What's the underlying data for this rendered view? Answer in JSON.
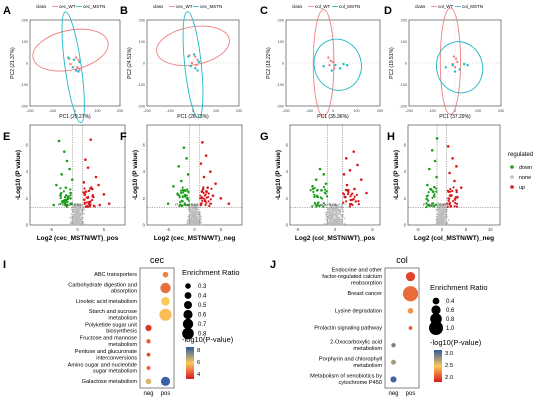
{
  "panels": {
    "A": {
      "letter": "A",
      "legend_title": "class",
      "legend": [
        "cec_WT",
        "cec_MSTN"
      ],
      "xlabel": "PC1 (29.27%)",
      "ylabel": "PC2 (21.37%)",
      "xticks": [
        "-200",
        "-100",
        "0",
        "100",
        "200"
      ],
      "yticks": [
        "200",
        "100",
        "0",
        "-100",
        "-200"
      ]
    },
    "B": {
      "letter": "B",
      "legend_title": "class",
      "legend": [
        "cec_WT",
        "cec_MSTN"
      ],
      "xlabel": "PC1 (28.73%)",
      "ylabel": "PC2 (24.51%)",
      "xticks": [
        "-200",
        "-100",
        "0",
        "100",
        "200"
      ],
      "yticks": [
        "200",
        "100",
        "0",
        "-100",
        "-200"
      ]
    },
    "C": {
      "letter": "C",
      "legend_title": "class",
      "legend": [
        "col_WT",
        "col_MSTN"
      ],
      "xlabel": "PC1 (35.36%)",
      "ylabel": "PC2 (18.22%)",
      "xticks": [
        "-200",
        "-100",
        "0",
        "100",
        "200"
      ],
      "yticks": [
        "200",
        "100",
        "0",
        "-100",
        "-200"
      ]
    },
    "D": {
      "letter": "D",
      "legend_title": "class",
      "legend": [
        "col_WT",
        "col_MSTN"
      ],
      "xlabel": "PC1 (37.29%)",
      "ylabel": "PC2 (19.51%)",
      "xticks": [
        "-200",
        "-100",
        "0",
        "100",
        "200"
      ],
      "yticks": [
        "200",
        "100",
        "0",
        "-100",
        "-200"
      ]
    },
    "E": {
      "letter": "E",
      "xlabel": "Log2 (cec_MSTN/WT)_pos",
      "ylabel": "-Log10 (P value)",
      "pval": "P value: 0.05",
      "xticks": [
        "-5",
        "0",
        "5"
      ],
      "yticks": [
        "0",
        "2",
        "4",
        "6"
      ]
    },
    "F": {
      "letter": "F",
      "xlabel": "Log2 (cec_MSTN/WT)_neg",
      "ylabel": "-Log10 (P value)",
      "pval": "P value: 0.05",
      "xticks": [
        "-5",
        "0",
        "5"
      ],
      "yticks": [
        "0",
        "2",
        "4",
        "6"
      ]
    },
    "G": {
      "letter": "G",
      "xlabel": "Log2 (col_MSTN/WT)_pos",
      "ylabel": "-Log10 (P value)",
      "pval": "P value: 0.05",
      "xticks": [
        "-5",
        "0",
        "5"
      ],
      "yticks": [
        "0",
        "2",
        "4",
        "6"
      ]
    },
    "H": {
      "letter": "H",
      "xlabel": "Log2 (col_MSTN/WT)_neg",
      "ylabel": "-Log10 (P value)",
      "pval": "P value: 0.05",
      "xticks": [
        "-5",
        "0",
        "5",
        "10"
      ],
      "yticks": [
        "0",
        "2",
        "4",
        "6"
      ]
    }
  },
  "regulated_legend": {
    "title": "regulated",
    "items": [
      "down",
      "none",
      "up"
    ],
    "colors": [
      "#1a9e1a",
      "#bdbdbd",
      "#d7191c"
    ]
  },
  "enrich_I": {
    "letter": "I",
    "title": "cec",
    "legend_size_title": "Enrichment Ratio",
    "size_labels": [
      "0.3",
      "0.4",
      "0.5",
      "0.6",
      "0.7",
      "0.8"
    ],
    "legend_color_title": "-log10(P-value)",
    "color_ticks": [
      "8",
      "6",
      "4"
    ]
  },
  "enrich_J": {
    "letter": "J",
    "title": "col",
    "legend_size_title": "Enrichment Ratio",
    "size_labels": [
      "0.4",
      "0.6",
      "0.8",
      "1.0"
    ],
    "legend_color_title": "-log10(P-value)",
    "color_ticks": [
      "3.0",
      "2.5",
      "2.0"
    ]
  },
  "chart_data": [
    {
      "type": "scatter",
      "panel": "A",
      "xlabel": "PC1 (29.27%)",
      "ylabel": "PC2 (21.37%)",
      "xlim": [
        -200,
        200
      ],
      "ylim": [
        -200,
        200
      ],
      "series": [
        {
          "name": "cec_WT",
          "color": "#f08080",
          "points": [
            [
              -25,
              20
            ],
            [
              5,
              25
            ],
            [
              15,
              15
            ],
            [
              -20,
              -5
            ],
            [
              10,
              -20
            ],
            [
              20,
              -30
            ]
          ]
        },
        {
          "name": "cec_MSTN",
          "color": "#20b8c8",
          "points": [
            [
              -30,
              25
            ],
            [
              -5,
              15
            ],
            [
              20,
              5
            ],
            [
              -10,
              -20
            ],
            [
              5,
              -35
            ],
            [
              15,
              -40
            ]
          ]
        }
      ]
    },
    {
      "type": "scatter",
      "panel": "B",
      "xlabel": "PC1 (28.73%)",
      "ylabel": "PC2 (24.51%)",
      "xlim": [
        -200,
        200
      ],
      "ylim": [
        -200,
        200
      ],
      "series": [
        {
          "name": "cec_WT",
          "color": "#f08080",
          "points": [
            [
              -15,
              35
            ],
            [
              10,
              30
            ],
            [
              20,
              15
            ],
            [
              -5,
              0
            ],
            [
              15,
              -10
            ]
          ]
        },
        {
          "name": "cec_MSTN",
          "color": "#20b8c8",
          "points": [
            [
              -20,
              30
            ],
            [
              5,
              40
            ],
            [
              25,
              5
            ],
            [
              -10,
              -15
            ],
            [
              10,
              -25
            ],
            [
              20,
              -35
            ]
          ]
        }
      ]
    },
    {
      "type": "scatter",
      "panel": "C",
      "xlabel": "PC1 (35.36%)",
      "ylabel": "PC2 (18.22%)",
      "xlim": [
        -200,
        200
      ],
      "ylim": [
        -200,
        200
      ],
      "series": [
        {
          "name": "col_WT",
          "color": "#f08080",
          "points": [
            [
              -20,
              25
            ],
            [
              -10,
              10
            ],
            [
              0,
              5
            ],
            [
              -15,
              -10
            ],
            [
              5,
              -25
            ]
          ]
        },
        {
          "name": "col_MSTN",
          "color": "#20b8c8",
          "points": [
            [
              -40,
              -15
            ],
            [
              10,
              -10
            ],
            [
              45,
              -5
            ],
            [
              60,
              -10
            ],
            [
              -5,
              -35
            ],
            [
              30,
              -25
            ]
          ]
        }
      ]
    },
    {
      "type": "scatter",
      "panel": "D",
      "xlabel": "PC1 (37.29%)",
      "ylabel": "PC2 (19.51%)",
      "xlim": [
        -200,
        200
      ],
      "ylim": [
        -200,
        200
      ],
      "series": [
        {
          "name": "col_WT",
          "color": "#f08080",
          "points": [
            [
              -5,
              30
            ],
            [
              5,
              20
            ],
            [
              10,
              5
            ],
            [
              -10,
              -5
            ],
            [
              0,
              -20
            ]
          ]
        },
        {
          "name": "col_MSTN",
          "color": "#20b8c8",
          "points": [
            [
              -40,
              -20
            ],
            [
              -10,
              -10
            ],
            [
              40,
              -5
            ],
            [
              55,
              -10
            ],
            [
              0,
              -40
            ],
            [
              20,
              -30
            ]
          ]
        }
      ]
    },
    {
      "type": "scatter",
      "panel": "E",
      "xlabel": "Log2 (cec_MSTN/WT)_pos",
      "ylabel": "-Log10 (P value)",
      "xlim": [
        -9,
        9
      ],
      "ylim": [
        0,
        7.5
      ],
      "series": [
        {
          "name": "down",
          "color": "#1a9e1a",
          "points": [
            [
              -3.5,
              6.3
            ],
            [
              -2.5,
              5.5
            ],
            [
              -2,
              4.8
            ],
            [
              -1.5,
              4.2
            ],
            [
              -3,
              3.8
            ],
            [
              -1,
              3.4
            ],
            [
              -4,
              3.0
            ],
            [
              -2.2,
              2.8
            ],
            [
              -1.3,
              2.4
            ],
            [
              -3.2,
              2.2
            ],
            [
              -1.8,
              2.0
            ],
            [
              -2.6,
              1.8
            ],
            [
              -1.1,
              1.6
            ],
            [
              -4.5,
              1.5
            ],
            [
              -2,
              1.4
            ]
          ]
        },
        {
          "name": "up",
          "color": "#d7191c",
          "points": [
            [
              2.5,
              6.4
            ],
            [
              1.5,
              4.9
            ],
            [
              2,
              4.3
            ],
            [
              3.5,
              3.6
            ],
            [
              1.2,
              3.2
            ],
            [
              4,
              3.0
            ],
            [
              2.8,
              2.7
            ],
            [
              1.6,
              2.5
            ],
            [
              5,
              2.3
            ],
            [
              3,
              2.1
            ],
            [
              1.3,
              1.9
            ],
            [
              2.2,
              1.7
            ],
            [
              6,
              1.6
            ],
            [
              4.2,
              1.5
            ],
            [
              1.8,
              1.4
            ]
          ]
        }
      ]
    },
    {
      "type": "scatter",
      "panel": "F",
      "xlabel": "Log2 (cec_MSTN/WT)_neg",
      "ylabel": "-Log10 (P value)",
      "xlim": [
        -9,
        9
      ],
      "ylim": [
        0,
        7.5
      ],
      "series": [
        {
          "name": "down",
          "color": "#1a9e1a",
          "points": [
            [
              -2,
              5.8
            ],
            [
              -1.5,
              5.0
            ],
            [
              -3,
              4.4
            ],
            [
              -1.2,
              3.8
            ],
            [
              -2.5,
              3.3
            ],
            [
              -4,
              2.9
            ],
            [
              -1.8,
              2.6
            ],
            [
              -3.2,
              2.3
            ],
            [
              -1.4,
              2.0
            ],
            [
              -2.4,
              1.8
            ],
            [
              -5,
              1.6
            ],
            [
              -1.1,
              1.5
            ]
          ]
        },
        {
          "name": "up",
          "color": "#d7191c",
          "points": [
            [
              1.5,
              6.2
            ],
            [
              2.2,
              5.2
            ],
            [
              1.2,
              4.6
            ],
            [
              3,
              4.0
            ],
            [
              1.8,
              3.6
            ],
            [
              4,
              3.1
            ],
            [
              2.5,
              2.8
            ],
            [
              1.4,
              2.5
            ],
            [
              3.5,
              2.2
            ],
            [
              5,
              2.0
            ],
            [
              2,
              1.8
            ],
            [
              6.5,
              1.6
            ],
            [
              1.2,
              1.5
            ]
          ]
        }
      ]
    },
    {
      "type": "scatter",
      "panel": "G",
      "xlabel": "Log2 (col_MSTN/WT)_pos",
      "ylabel": "-Log10 (P value)",
      "xlim": [
        -6,
        6
      ],
      "ylim": [
        0,
        7.5
      ],
      "series": [
        {
          "name": "down",
          "color": "#1a9e1a",
          "points": [
            [
              -2,
              4.2
            ],
            [
              -1.5,
              3.8
            ],
            [
              -2.5,
              3.4
            ],
            [
              -1.2,
              3.1
            ],
            [
              -3,
              2.9
            ],
            [
              -1.8,
              2.6
            ]
          ]
        },
        {
          "name": "up",
          "color": "#d7191c",
          "points": [
            [
              2.5,
              5.5
            ],
            [
              1.5,
              5.0
            ],
            [
              3,
              4.5
            ],
            [
              2,
              4.1
            ],
            [
              1.2,
              3.8
            ],
            [
              3.5,
              3.4
            ],
            [
              1.6,
              3.0
            ],
            [
              2.6,
              2.7
            ],
            [
              4.2,
              2.4
            ],
            [
              1.3,
              2.1
            ]
          ]
        }
      ]
    },
    {
      "type": "scatter",
      "panel": "H",
      "xlabel": "Log2 (col_MSTN/WT)_neg",
      "ylabel": "-Log10 (P value)",
      "xlim": [
        -7,
        12
      ],
      "ylim": [
        0,
        7.5
      ],
      "series": [
        {
          "name": "down",
          "color": "#1a9e1a",
          "points": [
            [
              -1,
              6.5
            ],
            [
              -2,
              5.6
            ],
            [
              -1.4,
              4.8
            ],
            [
              -2.6,
              4.2
            ],
            [
              -1.1,
              3.6
            ],
            [
              -3,
              3.0
            ],
            [
              -1.8,
              2.5
            ]
          ]
        },
        {
          "name": "up",
          "color": "#d7191c",
          "points": [
            [
              1.3,
              5.9
            ],
            [
              2.2,
              5.0
            ],
            [
              3,
              4.4
            ],
            [
              1.6,
              3.9
            ],
            [
              2.6,
              3.3
            ],
            [
              4,
              2.8
            ],
            [
              1.4,
              2.5
            ],
            [
              3.2,
              2.1
            ]
          ]
        }
      ]
    },
    {
      "type": "bubble",
      "panel": "I",
      "title": "cec",
      "categories_x": [
        "neg",
        "pos"
      ],
      "pathways": [
        "ABC transporters",
        "Carbohydrate digestion and absorption",
        "Linoleic acid metabolism",
        "Starch and sucrose metabolism",
        "Polyketide sugar unit biosynthesis",
        "Fructose and mannose metabolism",
        "Pentose and glucuronate interconversions",
        "Amino sugar and nucleotide sugar metabolism",
        "Galactose metabolism"
      ],
      "points": [
        {
          "pathway": "ABC transporters",
          "x": "pos",
          "ratio": 0.3,
          "logp": 4.8
        },
        {
          "pathway": "Carbohydrate digestion and absorption",
          "x": "pos",
          "ratio": 0.7,
          "logp": 4.5
        },
        {
          "pathway": "Linoleic acid metabolism",
          "x": "pos",
          "ratio": 0.55,
          "logp": 6.0
        },
        {
          "pathway": "Starch and sucrose metabolism",
          "x": "pos",
          "ratio": 0.85,
          "logp": 5.8
        },
        {
          "pathway": "Polyketide sugar unit biosynthesis",
          "x": "neg",
          "ratio": 0.35,
          "logp": 3.5
        },
        {
          "pathway": "Fructose and mannose metabolism",
          "x": "neg",
          "ratio": 0.2,
          "logp": 4.2
        },
        {
          "pathway": "Pentose and glucuronate interconversions",
          "x": "neg",
          "ratio": 0.15,
          "logp": 3.8
        },
        {
          "pathway": "Amino sugar and nucleotide sugar metabolism",
          "x": "neg",
          "ratio": 0.18,
          "logp": 4.5
        },
        {
          "pathway": "Galactose metabolism",
          "x": "neg",
          "ratio": 0.3,
          "logp": 6.5
        },
        {
          "pathway": "Galactose metabolism",
          "x": "pos",
          "ratio": 0.6,
          "logp": 8.8
        }
      ]
    },
    {
      "type": "bubble",
      "panel": "J",
      "title": "col",
      "categories_x": [
        "neg",
        "pos"
      ],
      "pathways": [
        "Endocrine and other factor-regulated calcium reabsorption",
        "Breast cancer",
        "Lysine degradation",
        "Prolactin signaling pathway",
        "2-Oxocarboxylic acid metabolism",
        "Porphyrin and chlorophyll metabolism",
        "Metabolism of xenobiotics by cytochrome P450"
      ],
      "points": [
        {
          "pathway": "Endocrine and other factor-regulated calcium reabsorption",
          "x": "pos",
          "ratio": 0.6,
          "logp": 2.0
        },
        {
          "pathway": "Breast cancer",
          "x": "pos",
          "ratio": 1.1,
          "logp": 2.2
        },
        {
          "pathway": "Lysine degradation",
          "x": "pos",
          "ratio": 0.3,
          "logp": 2.4
        },
        {
          "pathway": "Prolactin signaling pathway",
          "x": "pos",
          "ratio": 0.15,
          "logp": 2.1
        },
        {
          "pathway": "2-Oxocarboxylic acid metabolism",
          "x": "neg",
          "ratio": 0.2,
          "logp": 3.2
        },
        {
          "pathway": "Porphyrin and chlorophyll metabolism",
          "x": "neg",
          "ratio": 0.25,
          "logp": 3.0
        },
        {
          "pathway": "Metabolism of xenobiotics by cytochrome P450",
          "x": "neg",
          "ratio": 0.35,
          "logp": 3.4
        }
      ]
    }
  ]
}
